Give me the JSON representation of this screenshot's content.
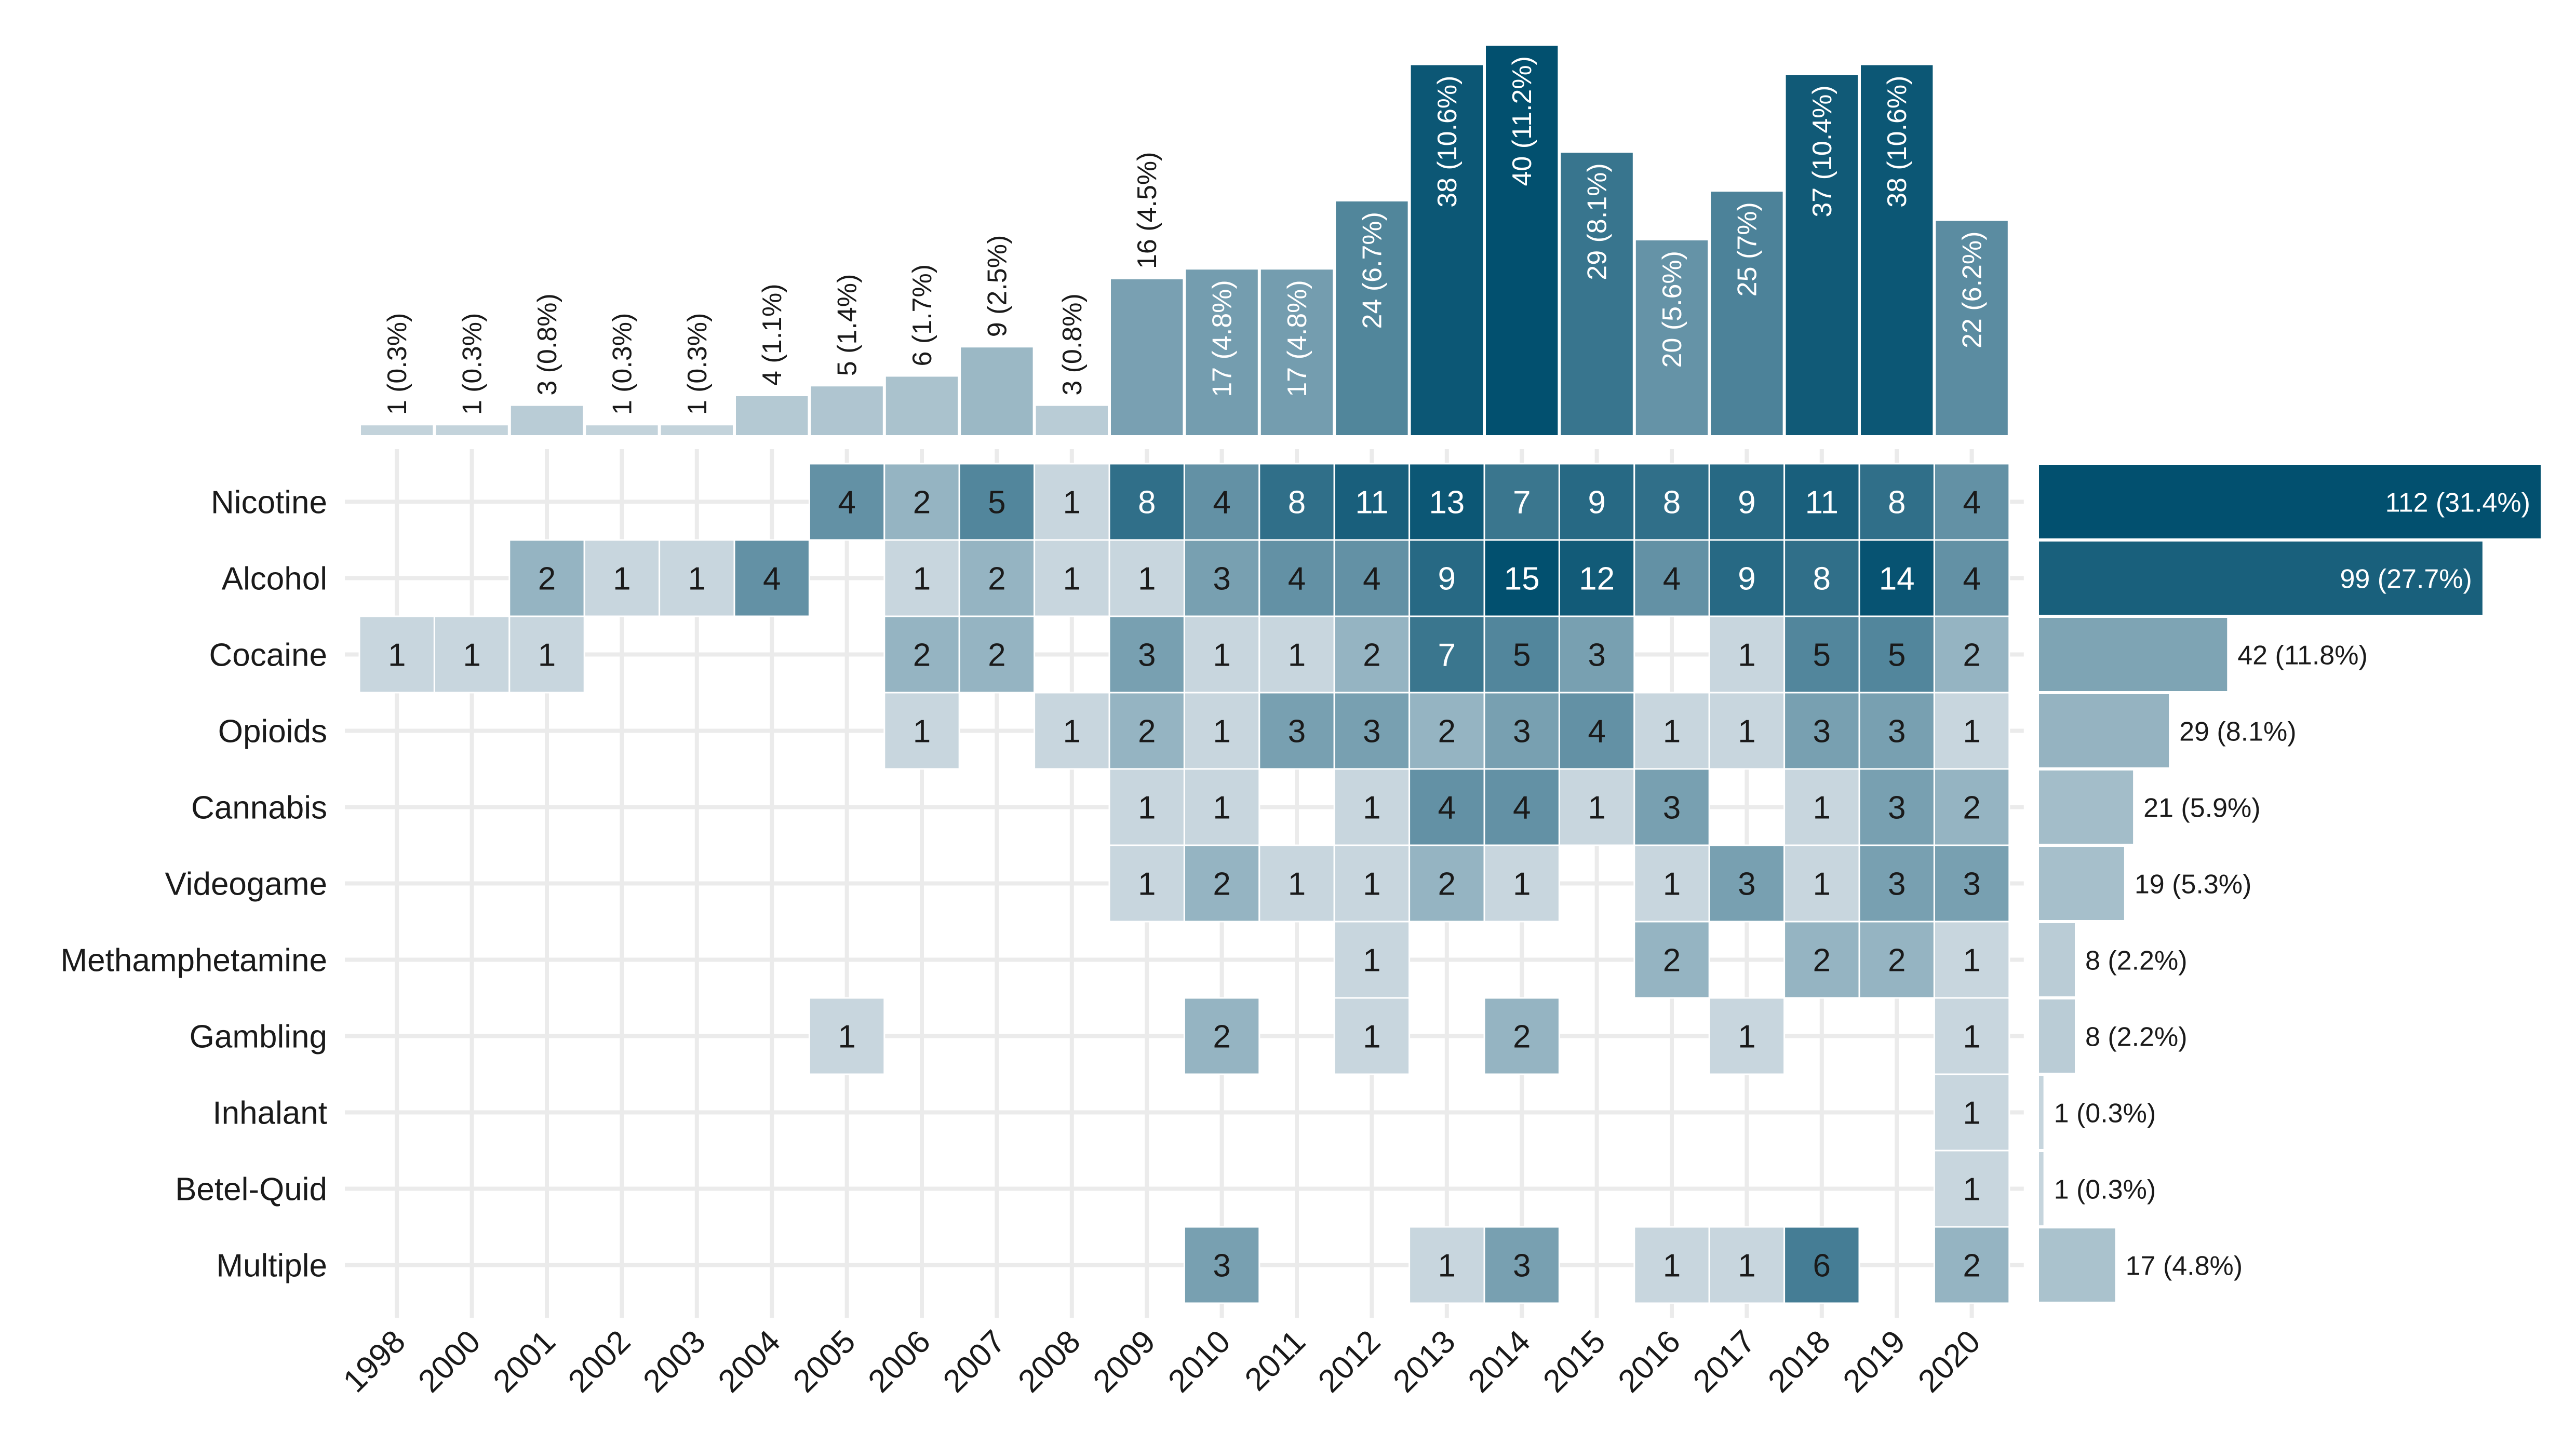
{
  "chart_data": {
    "type": "heatmap",
    "title": "",
    "xlabel": "",
    "ylabel": "",
    "years": [
      "1998",
      "2000",
      "2001",
      "2002",
      "2003",
      "2004",
      "2005",
      "2006",
      "2007",
      "2008",
      "2009",
      "2010",
      "2011",
      "2012",
      "2013",
      "2014",
      "2015",
      "2016",
      "2017",
      "2018",
      "2019",
      "2020"
    ],
    "categories": [
      "Nicotine",
      "Alcohol",
      "Cocaine",
      "Opioids",
      "Cannabis",
      "Videogame",
      "Methamphetamine",
      "Gambling",
      "Inhalant",
      "Betel-Quid",
      "Multiple"
    ],
    "matrix": [
      [
        null,
        null,
        null,
        null,
        null,
        null,
        4,
        2,
        5,
        1,
        8,
        4,
        8,
        11,
        13,
        7,
        9,
        8,
        9,
        11,
        8,
        4
      ],
      [
        null,
        null,
        2,
        1,
        1,
        4,
        null,
        1,
        2,
        1,
        1,
        3,
        4,
        4,
        9,
        15,
        12,
        4,
        9,
        8,
        14,
        4
      ],
      [
        1,
        1,
        1,
        null,
        null,
        null,
        null,
        2,
        2,
        null,
        3,
        1,
        1,
        2,
        7,
        5,
        3,
        null,
        1,
        5,
        5,
        2
      ],
      [
        null,
        null,
        null,
        null,
        null,
        null,
        null,
        1,
        null,
        1,
        2,
        1,
        3,
        3,
        2,
        3,
        4,
        1,
        1,
        3,
        3,
        1
      ],
      [
        null,
        null,
        null,
        null,
        null,
        null,
        null,
        null,
        null,
        null,
        1,
        1,
        null,
        1,
        4,
        4,
        1,
        3,
        null,
        1,
        3,
        2
      ],
      [
        null,
        null,
        null,
        null,
        null,
        null,
        null,
        null,
        null,
        null,
        1,
        2,
        1,
        1,
        2,
        1,
        null,
        1,
        3,
        1,
        3,
        3
      ],
      [
        null,
        null,
        null,
        null,
        null,
        null,
        null,
        null,
        null,
        null,
        null,
        null,
        null,
        1,
        null,
        null,
        null,
        2,
        null,
        2,
        2,
        1
      ],
      [
        null,
        null,
        null,
        null,
        null,
        null,
        1,
        null,
        null,
        null,
        null,
        2,
        null,
        1,
        null,
        2,
        null,
        null,
        1,
        null,
        null,
        1
      ],
      [
        null,
        null,
        null,
        null,
        null,
        null,
        null,
        null,
        null,
        null,
        null,
        null,
        null,
        null,
        null,
        null,
        null,
        null,
        null,
        null,
        null,
        1
      ],
      [
        null,
        null,
        null,
        null,
        null,
        null,
        null,
        null,
        null,
        null,
        null,
        null,
        null,
        null,
        null,
        null,
        null,
        null,
        null,
        null,
        null,
        1
      ],
      [
        null,
        null,
        null,
        null,
        null,
        null,
        null,
        null,
        null,
        null,
        null,
        3,
        null,
        null,
        1,
        3,
        null,
        1,
        1,
        6,
        null,
        2
      ]
    ],
    "year_totals": [
      1,
      1,
      3,
      1,
      1,
      4,
      5,
      6,
      9,
      3,
      16,
      17,
      17,
      24,
      38,
      40,
      29,
      20,
      25,
      37,
      38,
      22
    ],
    "year_labels": [
      "1 (0.3%)",
      "1 (0.3%)",
      "3 (0.8%)",
      "1 (0.3%)",
      "1 (0.3%)",
      "4 (1.1%)",
      "5 (1.4%)",
      "6 (1.7%)",
      "9 (2.5%)",
      "3 (0.8%)",
      "16 (4.5%)",
      "17 (4.8%)",
      "17 (4.8%)",
      "24 (6.7%)",
      "38 (10.6%)",
      "40 (11.2%)",
      "29 (8.1%)",
      "20 (5.6%)",
      "25 (7%)",
      "37 (10.4%)",
      "38 (10.6%)",
      "22 (6.2%)"
    ],
    "category_totals": [
      112,
      99,
      42,
      29,
      21,
      19,
      8,
      8,
      1,
      1,
      17
    ],
    "category_labels": [
      "112 (31.4%)",
      "99 (27.7%)",
      "42 (11.8%)",
      "29 (8.1%)",
      "21 (5.9%)",
      "19 (5.3%)",
      "8 (2.2%)",
      "8 (2.2%)",
      "1 (0.3%)",
      "1 (0.3%)",
      "17 (4.8%)"
    ],
    "grid": true,
    "colors": {
      "low": "#c8d6de",
      "high": "#02506f",
      "grid": "#ebebeb",
      "text_dark": "#1a1a1a",
      "text_light": "#ffffff"
    }
  }
}
